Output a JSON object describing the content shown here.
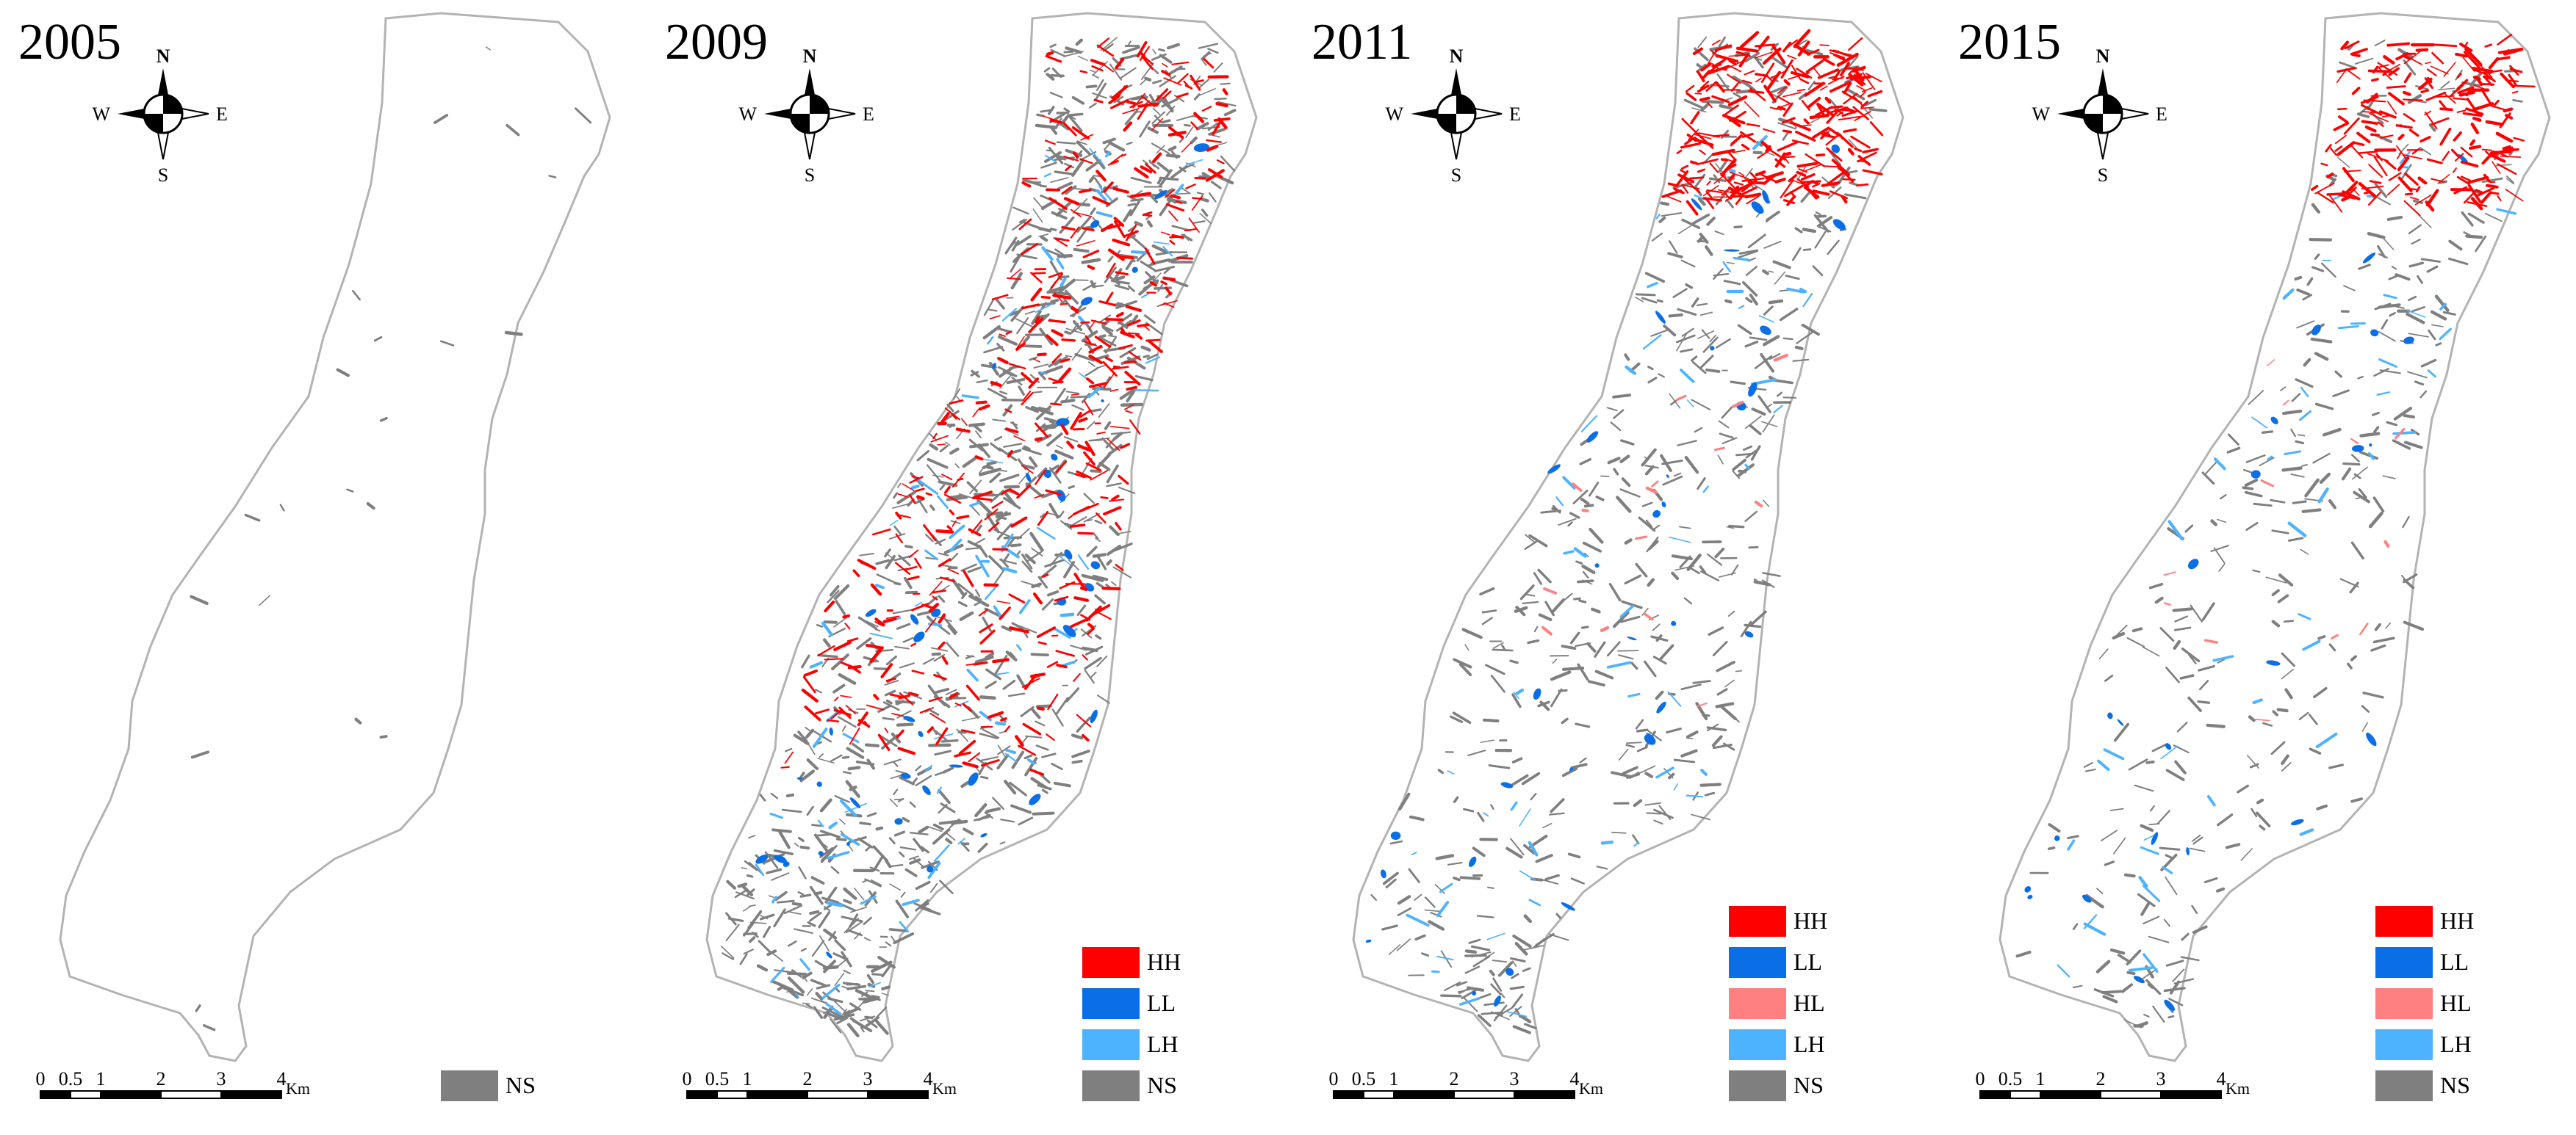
{
  "figure": {
    "panels": [
      {
        "year": "2005",
        "legend": [
          {
            "code": "NS",
            "color": "#7f7f7f"
          }
        ],
        "hh_intensity": 0.0,
        "ll_intensity": 0.0,
        "hl_intensity": 0.0,
        "lh_intensity": 0.0,
        "ns_intensity": 0.02
      },
      {
        "year": "2009",
        "legend": [
          {
            "code": "HH",
            "color": "#ff0000"
          },
          {
            "code": "LL",
            "color": "#0a6fe6"
          },
          {
            "code": "LH",
            "color": "#4db3ff"
          },
          {
            "code": "NS",
            "color": "#7f7f7f"
          }
        ],
        "hh_intensity": 0.7,
        "ll_intensity": 0.35,
        "hl_intensity": 0.0,
        "lh_intensity": 0.6,
        "ns_intensity": 1.0
      },
      {
        "year": "2011",
        "legend": [
          {
            "code": "HH",
            "color": "#ff0000"
          },
          {
            "code": "LL",
            "color": "#0a6fe6"
          },
          {
            "code": "HL",
            "color": "#ff8080"
          },
          {
            "code": "LH",
            "color": "#4db3ff"
          },
          {
            "code": "NS",
            "color": "#7f7f7f"
          }
        ],
        "hh_intensity": 0.45,
        "ll_intensity": 0.3,
        "hl_intensity": 0.25,
        "lh_intensity": 0.35,
        "ns_intensity": 0.5
      },
      {
        "year": "2015",
        "legend": [
          {
            "code": "HH",
            "color": "#ff0000"
          },
          {
            "code": "LL",
            "color": "#0a6fe6"
          },
          {
            "code": "HL",
            "color": "#ff8080"
          },
          {
            "code": "LH",
            "color": "#4db3ff"
          },
          {
            "code": "NS",
            "color": "#7f7f7f"
          }
        ],
        "hh_intensity": 0.35,
        "ll_intensity": 0.2,
        "hl_intensity": 0.2,
        "lh_intensity": 0.3,
        "ns_intensity": 0.3
      }
    ],
    "compass": {
      "n": "N",
      "s": "S",
      "e": "E",
      "w": "W"
    },
    "scale_bar": {
      "ticks": [
        "0",
        "0.5",
        "1",
        "2",
        "3",
        "4"
      ],
      "unit": "Km"
    },
    "colors": {
      "outline": "#b3b3b3",
      "background": "#ffffff",
      "text": "#000000"
    }
  }
}
